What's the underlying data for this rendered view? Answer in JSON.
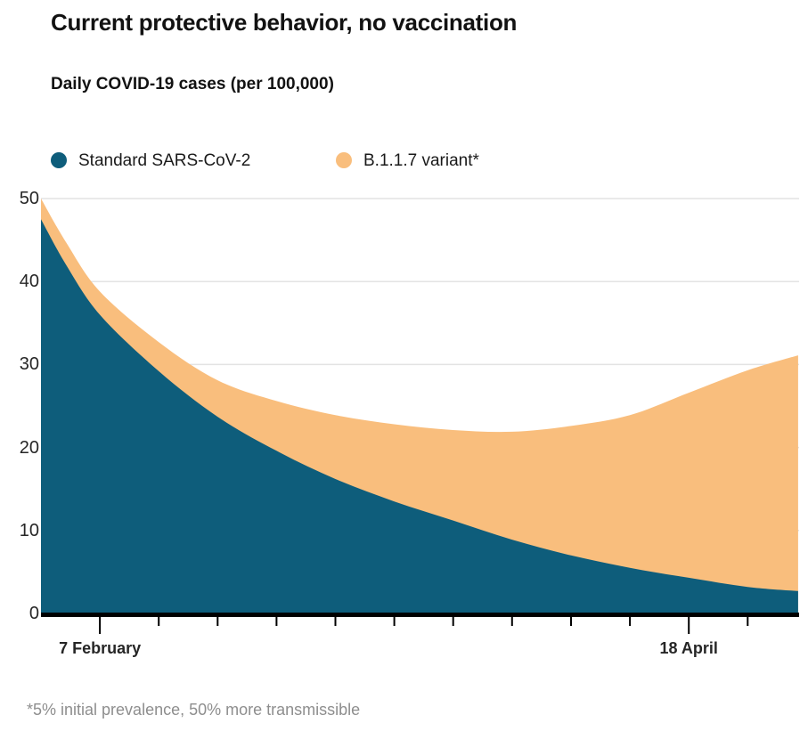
{
  "chart_data": {
    "type": "area",
    "stacked": true,
    "title": "Current protective behavior, no vaccination",
    "subtitle": "Daily COVID-19 cases (per 100,000)",
    "x_days": [
      0,
      3,
      7,
      14,
      21,
      28,
      35,
      42,
      49,
      56,
      63,
      70,
      77,
      84,
      90
    ],
    "series": [
      {
        "name": "Standard SARS-CoV-2",
        "color": "#0E5D7B",
        "values": [
          47.5,
          42.0,
          36.0,
          29.2,
          23.7,
          19.6,
          16.2,
          13.5,
          11.2,
          8.9,
          7.0,
          5.5,
          4.3,
          3.2,
          2.7
        ]
      },
      {
        "name": "B.1.1.7 variant*",
        "color": "#F9BE7D",
        "values": [
          2.5,
          2.7,
          2.8,
          3.5,
          4.4,
          6.0,
          7.7,
          9.3,
          10.9,
          13.0,
          15.6,
          18.4,
          22.3,
          26.1,
          28.4
        ]
      }
    ],
    "ylim": [
      0,
      50
    ],
    "yticks": [
      0,
      10,
      20,
      30,
      40,
      50
    ],
    "xticks_days": [
      7,
      14,
      21,
      28,
      35,
      42,
      49,
      56,
      63,
      70,
      77,
      84
    ],
    "xtick_labels": [
      {
        "day": 7,
        "label": "7 February"
      },
      {
        "day": 77,
        "label": "18 April"
      }
    ],
    "legend_position": "top",
    "grid": "horizontal"
  },
  "footnote": "*5% initial prevalence, 50% more transmissible",
  "colors": {
    "standard": "#0E5D7B",
    "variant": "#F9BE7D",
    "gridline": "#E3E3E3",
    "axis": "#000000",
    "heading_text": "#121212",
    "axis_text": "#262626",
    "muted_text": "#8E8E8E"
  }
}
